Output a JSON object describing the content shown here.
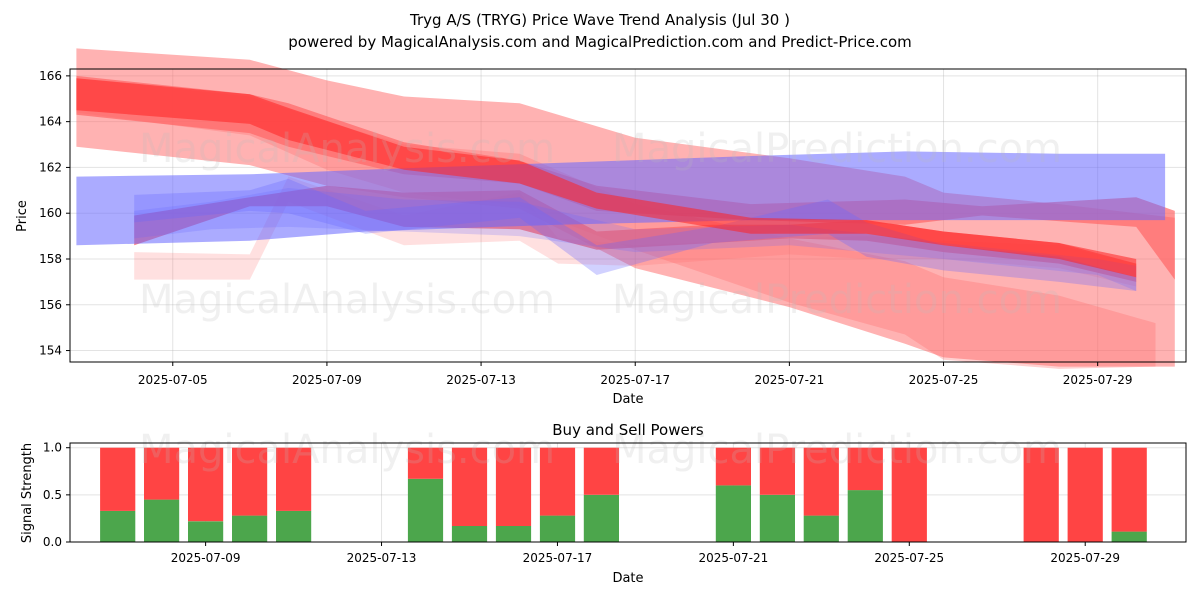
{
  "page": {
    "title_line1": "Tryg A/S (TRYG) Price Wave Trend Analysis (Jul 30 )",
    "title_line2": "powered by MagicalAnalysis.com and MagicalPrediction.com and Predict-Price.com"
  },
  "watermarks": [
    "MagicalAnalysis.com",
    "MagicalPrediction.com"
  ],
  "colors": {
    "sell": "#ff4444",
    "buy": "#4ca64c",
    "red_band": "#ff6666",
    "blue_band": "#6666ff",
    "deep_red": "#ff2222"
  },
  "chart_data": [
    {
      "type": "area",
      "title": "",
      "xlabel": "Date",
      "ylabel": "Price",
      "xlim": [
        "2025-07-02T08:00",
        "2025-07-31T07:00"
      ],
      "ylim": [
        153.5,
        166.3
      ],
      "x_ticks": [
        "2025-07-05",
        "2025-07-09",
        "2025-07-13",
        "2025-07-17",
        "2025-07-21",
        "2025-07-25",
        "2025-07-29"
      ],
      "y_ticks": [
        154,
        156,
        158,
        160,
        162,
        164,
        166
      ],
      "grid": true,
      "series": [
        {
          "color": "red",
          "x": [
            "2025-07-02T12:00",
            "2025-07-07",
            "2025-07-09",
            "2025-07-11",
            "2025-07-14",
            "2025-07-17",
            "2025-07-21",
            "2025-07-24",
            "2025-07-25",
            "2025-07-28",
            "2025-07-31"
          ],
          "lower": [
            162.9,
            162.1,
            161.2,
            160.7,
            160.2,
            157.6,
            155.9,
            154.3,
            153.7,
            153.3,
            153.3
          ],
          "upper": [
            167.2,
            166.7,
            165.8,
            165.1,
            164.8,
            163.3,
            162.4,
            161.6,
            160.9,
            160.4,
            159.8
          ],
          "alpha": 0.5
        },
        {
          "color": "red",
          "x": [
            "2025-07-02T12:00",
            "2025-07-07",
            "2025-07-09",
            "2025-07-11",
            "2025-07-14",
            "2025-07-17",
            "2025-07-21",
            "2025-07-24",
            "2025-07-25",
            "2025-07-28",
            "2025-07-30T12:00"
          ],
          "lower": [
            164.4,
            163.4,
            161.9,
            160.9,
            160.3,
            158.4,
            156.1,
            154.7,
            153.6,
            153.2,
            153.3
          ],
          "upper": [
            165.9,
            165.1,
            164.0,
            163.0,
            162.6,
            160.4,
            158.9,
            157.9,
            157.2,
            156.4,
            155.2
          ],
          "alpha": 0.3
        },
        {
          "color": "red",
          "x": [
            "2025-07-02T12:00",
            "2025-07-07",
            "2025-07-08",
            "2025-07-11",
            "2025-07-14",
            "2025-07-16",
            "2025-07-20",
            "2025-07-24",
            "2025-07-26",
            "2025-07-30",
            "2025-07-31"
          ],
          "lower": [
            164.3,
            163.5,
            162.9,
            161.7,
            161.3,
            160.1,
            159.7,
            159.5,
            159.9,
            159.4,
            157.1
          ],
          "upper": [
            166.0,
            165.2,
            164.8,
            163.1,
            162.3,
            161.2,
            160.4,
            160.6,
            160.3,
            160.7,
            160.1
          ],
          "alpha": 0.7
        },
        {
          "color": "red",
          "x": [
            "2025-07-04",
            "2025-07-07",
            "2025-07-09",
            "2025-07-11",
            "2025-07-14",
            "2025-07-16",
            "2025-07-19",
            "2025-07-21",
            "2025-07-23",
            "2025-07-25",
            "2025-07-28",
            "2025-07-30"
          ],
          "lower": [
            158.6,
            160.3,
            160.3,
            159.4,
            159.3,
            158.4,
            158.7,
            158.9,
            158.8,
            158.3,
            157.8,
            157.0
          ],
          "upper": [
            159.9,
            160.7,
            161.2,
            160.9,
            161.0,
            159.2,
            159.5,
            159.5,
            159.7,
            159.2,
            158.7,
            157.8
          ],
          "alpha": 0.8
        },
        {
          "color": "red",
          "x": [
            "2025-07-04",
            "2025-07-07",
            "2025-07-08",
            "2025-07-11",
            "2025-07-14",
            "2025-07-15",
            "2025-07-17",
            "2025-07-21",
            "2025-07-23",
            "2025-07-25",
            "2025-07-28",
            "2025-07-30"
          ],
          "lower": [
            157.1,
            157.1,
            160.5,
            158.6,
            158.8,
            157.8,
            157.7,
            158.2,
            158.0,
            158.0,
            157.6,
            156.8
          ],
          "upper": [
            158.3,
            158.2,
            161.6,
            159.9,
            160.9,
            158.9,
            158.6,
            158.9,
            159.0,
            158.8,
            158.6,
            157.8
          ],
          "alpha": 0.2
        },
        {
          "color": "blue",
          "x": [
            "2025-07-02T12:00",
            "2025-07-07",
            "2025-07-10",
            "2025-07-15",
            "2025-07-20",
            "2025-07-24",
            "2025-07-28",
            "2025-07-30T18:00"
          ],
          "lower": [
            158.6,
            158.8,
            159.2,
            159.5,
            159.7,
            159.7,
            159.7,
            159.7
          ],
          "upper": [
            161.6,
            161.7,
            161.9,
            162.2,
            162.5,
            162.7,
            162.6,
            162.6
          ],
          "alpha": 0.55
        },
        {
          "color": "blue",
          "x": [
            "2025-07-04",
            "2025-07-07",
            "2025-07-08",
            "2025-07-10",
            "2025-07-14",
            "2025-07-16",
            "2025-07-19",
            "2025-07-22",
            "2025-07-23",
            "2025-07-25",
            "2025-07-28",
            "2025-07-30"
          ],
          "lower": [
            159.6,
            160.1,
            160.0,
            159.1,
            159.8,
            157.3,
            158.7,
            159.1,
            158.1,
            157.5,
            157.0,
            156.6
          ],
          "upper": [
            160.8,
            161.0,
            161.5,
            160.1,
            160.7,
            158.6,
            159.4,
            160.6,
            159.6,
            158.6,
            158.1,
            157.2
          ],
          "alpha": 0.3
        },
        {
          "color": "blue",
          "x": [
            "2025-07-04",
            "2025-07-06",
            "2025-07-08",
            "2025-07-11",
            "2025-07-14",
            "2025-07-17",
            "2025-07-21",
            "2025-07-25",
            "2025-07-29",
            "2025-07-30"
          ],
          "lower": [
            158.9,
            159.3,
            159.4,
            159.2,
            159.0,
            158.3,
            158.6,
            158.0,
            157.3,
            156.6
          ],
          "upper": [
            160.1,
            160.5,
            161.1,
            160.6,
            160.5,
            159.3,
            159.5,
            158.7,
            158.0,
            157.7
          ],
          "alpha": 0.22
        },
        {
          "color": "deep_red",
          "x": [
            "2025-07-02T12:00",
            "2025-07-07",
            "2025-07-08",
            "2025-07-11",
            "2025-07-14",
            "2025-07-16",
            "2025-07-20",
            "2025-07-23",
            "2025-07-25",
            "2025-07-28",
            "2025-07-30"
          ],
          "lower": [
            164.5,
            163.9,
            163.2,
            161.9,
            161.3,
            160.2,
            159.1,
            159.1,
            158.6,
            158.0,
            157.2
          ],
          "upper": [
            165.9,
            165.2,
            164.6,
            162.9,
            162.3,
            160.9,
            159.8,
            159.7,
            159.2,
            158.7,
            158.0
          ],
          "alpha": 0.55
        }
      ]
    },
    {
      "type": "bar",
      "title": "Buy and Sell Powers",
      "xlabel": "Date",
      "ylabel": "Signal Strength",
      "xlim": [
        "2025-07-05T22:00",
        "2025-07-31T07:00"
      ],
      "ylim": [
        0,
        1.05
      ],
      "x_ticks": [
        "2025-07-09",
        "2025-07-13",
        "2025-07-17",
        "2025-07-21",
        "2025-07-25",
        "2025-07-29"
      ],
      "y_ticks": [
        0.0,
        0.5,
        1.0
      ],
      "y_tick_labels": [
        "0.0",
        "0.5",
        "1.0"
      ],
      "x": [
        "2025-07-07",
        "2025-07-08",
        "2025-07-09",
        "2025-07-10",
        "2025-07-11",
        "2025-07-14",
        "2025-07-15",
        "2025-07-16",
        "2025-07-17",
        "2025-07-18",
        "2025-07-21",
        "2025-07-22",
        "2025-07-23",
        "2025-07-24",
        "2025-07-25",
        "2025-07-28",
        "2025-07-29",
        "2025-07-30"
      ],
      "series": [
        {
          "name": "buy",
          "values": [
            0.33,
            0.45,
            0.22,
            0.28,
            0.33,
            0.67,
            0.17,
            0.17,
            0.28,
            0.5,
            0.6,
            0.5,
            0.28,
            0.55,
            0.0,
            0.0,
            0.0,
            0.11
          ]
        },
        {
          "name": "sell",
          "values": [
            0.67,
            0.55,
            0.78,
            0.72,
            0.67,
            0.33,
            0.83,
            0.83,
            0.72,
            0.5,
            0.4,
            0.5,
            0.72,
            0.45,
            1.0,
            1.0,
            1.0,
            0.89
          ]
        }
      ]
    }
  ]
}
